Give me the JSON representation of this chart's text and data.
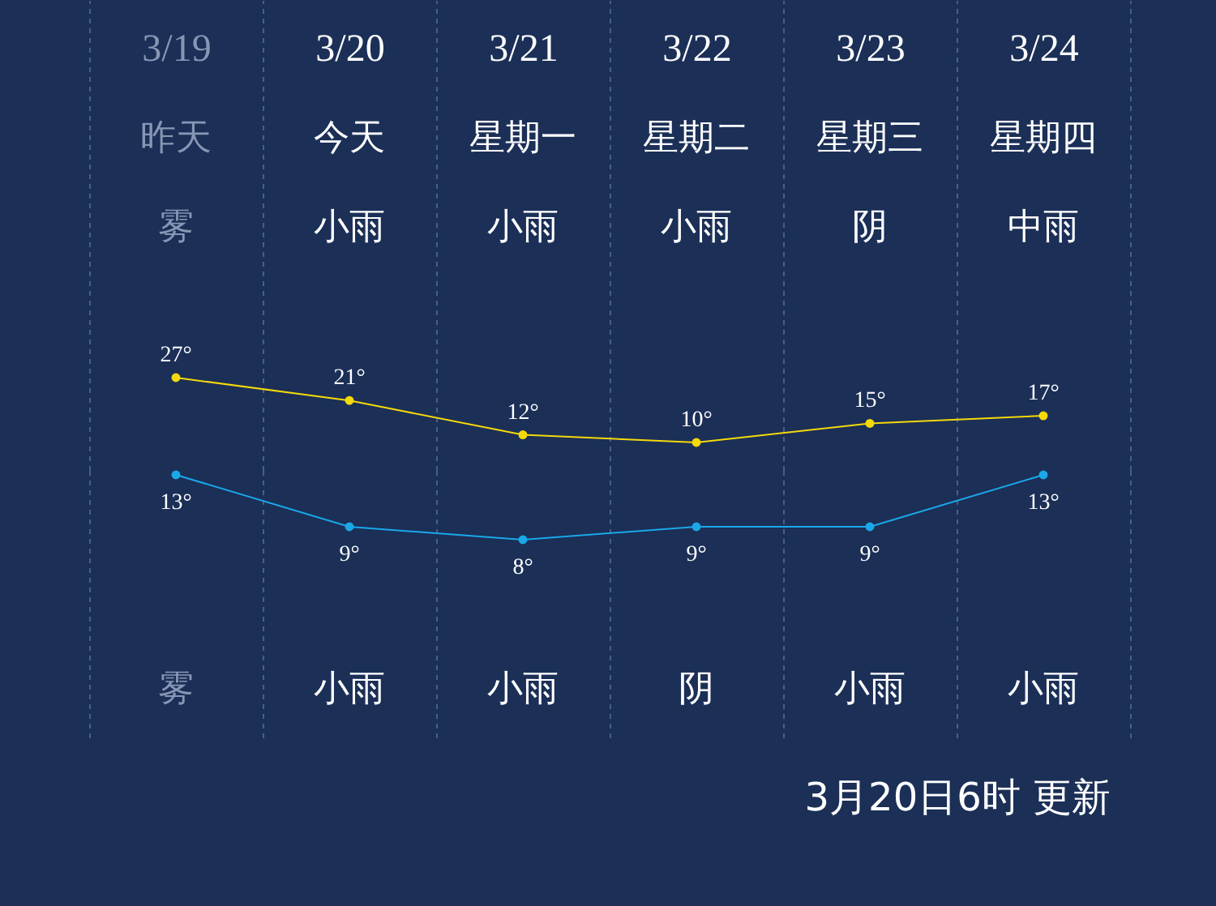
{
  "chart_data": [
    {
      "type": "line",
      "categories": [
        "3/19",
        "3/20",
        "3/21",
        "3/22",
        "3/23",
        "3/24"
      ],
      "series": [
        {
          "color": "#f5d90a",
          "values": [
            27,
            21,
            12,
            10,
            15,
            17
          ],
          "value_labels": [
            "27°",
            "21°",
            "12°",
            "10°",
            "15°",
            "17°"
          ]
        }
      ],
      "marker": "circle",
      "grid": "x",
      "annotations": [
        "昨天",
        "今天",
        "星期一",
        "星期二",
        "星期三",
        "星期四",
        "雾",
        "小雨",
        "小雨",
        "小雨",
        "阴",
        "中雨"
      ]
    },
    {
      "type": "line",
      "categories": [
        null,
        null,
        null,
        null,
        null,
        null
      ],
      "series": [
        {
          "color": "#1aa8e8",
          "values": [
            13,
            9,
            8,
            9,
            9,
            13
          ],
          "value_labels": [
            "13°",
            "9°",
            "8°",
            "9°",
            "9°",
            "13°"
          ]
        }
      ],
      "marker": "circle",
      "grid": "x",
      "annotations": [
        "雾",
        "小雨",
        "小雨",
        "阴",
        "小雨",
        "小雨",
        "3月20日6时 更新"
      ]
    }
  ]
}
